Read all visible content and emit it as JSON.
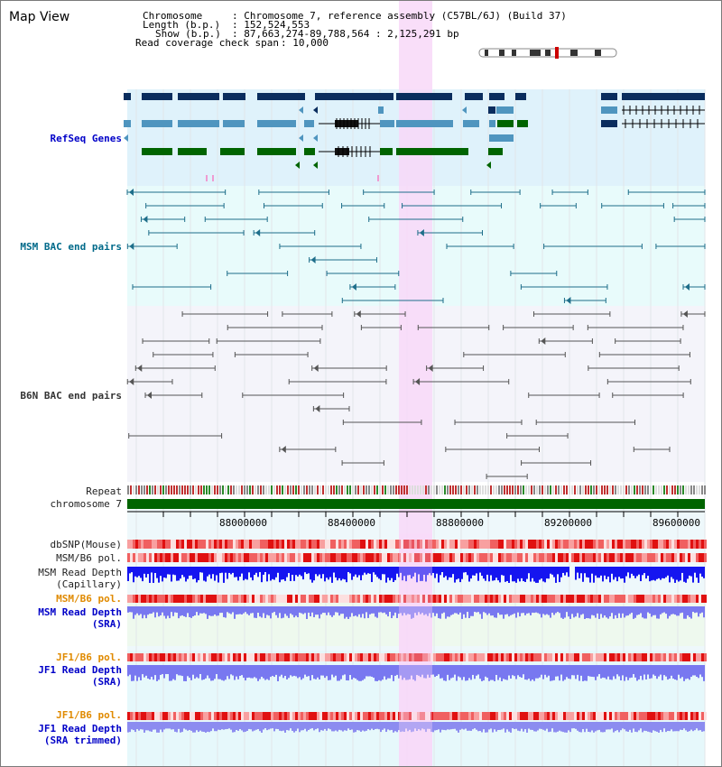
{
  "title": "Map View",
  "info": {
    "chromosome_key": "Chromosome",
    "chromosome_val": ": Chromosome 7, reference assembly (C57BL/6J) (Build 37)",
    "length_key": "Length (b.p.)",
    "length_val": ": 152,524,553",
    "show_key": "Show (b.p.)",
    "show_val": ": 87,663,274-89,788,564 : 2,125,291 bp",
    "read_key": "Read coverage check span",
    "read_val": ": 10,000"
  },
  "track_labels": {
    "refseq": "RefSeq Genes",
    "msm_bac": "MSM BAC end pairs",
    "b6n_bac": "B6N BAC end pairs",
    "repeat": "Repeat",
    "chromosome": "chromosome 7",
    "dbsnp": "dbSNP(Mouse)",
    "msm_pol": "MSM/B6 pol.",
    "msm_depth_cap_1": "MSM Read Depth",
    "msm_depth_cap_2": "(Capillary)",
    "msm_pol_sra": "MSM/B6 pol.",
    "msm_depth_sra_1": "MSM Read Depth",
    "msm_depth_sra_2": "(SRA)",
    "jf1_pol": "JF1/B6 pol.",
    "jf1_depth_1": "JF1 Read Depth",
    "jf1_depth_2": "(SRA)",
    "jf1_pol_trim": "JF1/B6 pol.",
    "jf1_trim_1": "JF1 Read Depth",
    "jf1_trim_2": "(SRA trimmed)"
  },
  "ticks": [
    "88000000",
    "88400000",
    "88800000",
    "89200000",
    "89600000"
  ],
  "colors": {
    "refseq_bg": "#dff2fb",
    "msm_bac_bg": "#e8fbfb",
    "b6n_bac_bg": "#f4f4fa",
    "highlight": "#f8d8f8",
    "gene_navy": "#0a2d5e",
    "gene_blue": "#4f95bf",
    "gene_green": "#006400",
    "bac_teal": "#1e6e8a",
    "bac_gray": "#555555",
    "chromosome_green": "#006400",
    "depth_blue": "#1515f0",
    "depth_lightblue": "#7878f0"
  }
}
